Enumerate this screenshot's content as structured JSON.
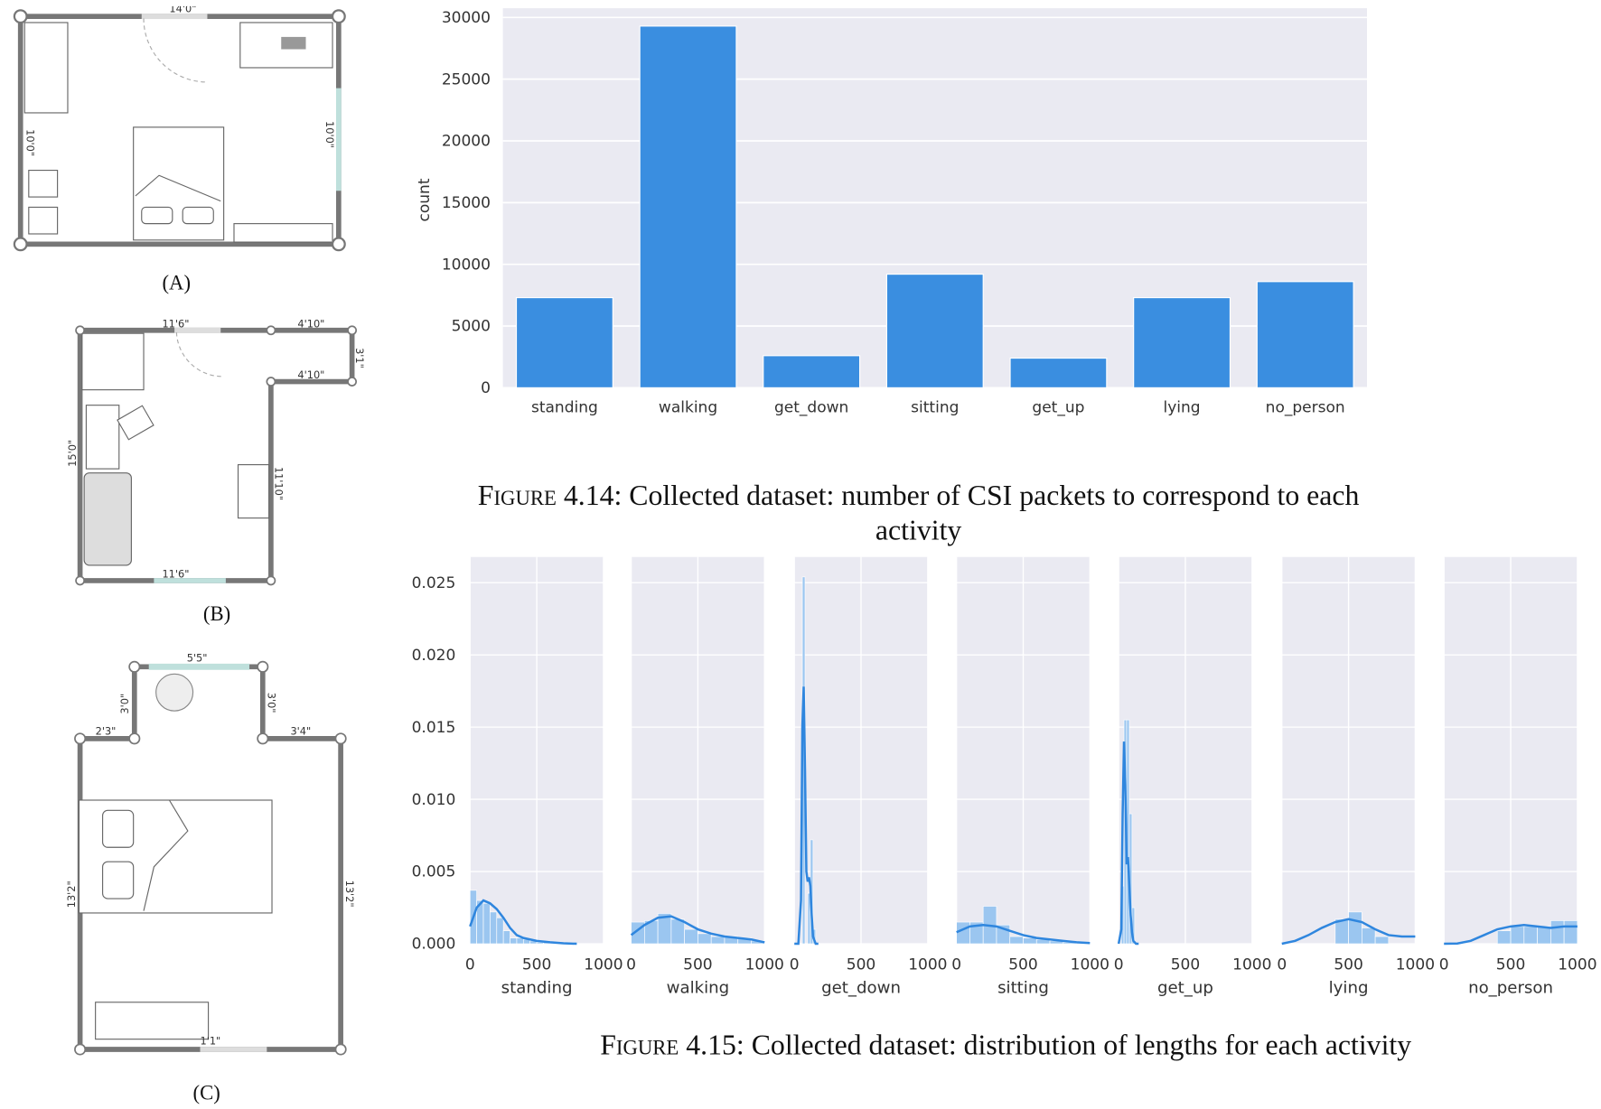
{
  "floorplans": {
    "a": {
      "label": "(A)",
      "dims": [
        "14'0\"",
        "10'0\"",
        "10'0\""
      ]
    },
    "b": {
      "label": "(B)",
      "dims": [
        "11'6\"",
        "4'10\"",
        "3'1\"",
        "4'10\"",
        "15'0\"",
        "11'10\"",
        "11'6\""
      ]
    },
    "c": {
      "label": "(C)",
      "dims": [
        "5'5\"",
        "3'0\"",
        "3'0\"",
        "2'3\"",
        "3'4\"",
        "13'2\"",
        "13'2\"",
        "1'1\""
      ]
    }
  },
  "figure_4_14": {
    "caption_prefix": "Figure 4.14:",
    "caption_text": "Collected dataset: number of CSI packets to correspond to each activity"
  },
  "figure_4_15": {
    "caption_prefix": "Figure 4.15:",
    "caption_text": "Collected dataset: distribution of lengths for each activity"
  },
  "colors": {
    "bar": "#3a8ee0",
    "plot_bg": "#eaeaf2",
    "grid": "#ffffff",
    "hist": "#93c3f0",
    "kde": "#2f86de"
  },
  "chart_data": [
    {
      "type": "bar",
      "categories": [
        "standing",
        "walking",
        "get_down",
        "sitting",
        "get_up",
        "lying",
        "no_person"
      ],
      "values": [
        7300,
        29300,
        2600,
        9200,
        2400,
        7300,
        8600
      ],
      "xlabel": "",
      "ylabel": "count",
      "ylim": [
        0,
        30500
      ],
      "yticks": [
        0,
        5000,
        10000,
        15000,
        20000,
        25000,
        30000
      ],
      "grid": true
    },
    {
      "type": "area",
      "facets": [
        "standing",
        "walking",
        "get_down",
        "sitting",
        "get_up",
        "lying",
        "no_person"
      ],
      "xlim": [
        0,
        1000
      ],
      "xticks": [
        0,
        500,
        1000
      ],
      "ylim": [
        0,
        0.026
      ],
      "yticks": [
        "0.000",
        "0.005",
        "0.010",
        "0.015",
        "0.020",
        "0.025"
      ],
      "grid": true,
      "series": [
        {
          "facet": "standing",
          "hist_x": [
            0,
            50,
            100,
            150,
            200,
            250,
            300,
            350,
            400,
            450,
            500,
            550,
            600,
            650
          ],
          "hist": [
            0.0037,
            0.003,
            0.0028,
            0.0022,
            0.0018,
            0.0009,
            0.0004,
            0.0004,
            0.0003,
            0.0002,
            0.0001,
            0.0001,
            5e-05,
            0.0
          ],
          "kde_x": [
            0,
            50,
            100,
            150,
            200,
            250,
            300,
            350,
            400,
            450,
            500,
            600,
            700,
            800
          ],
          "kde": [
            0.0012,
            0.0025,
            0.003,
            0.0028,
            0.0024,
            0.0018,
            0.0011,
            0.0006,
            0.0004,
            0.0003,
            0.0002,
            0.0001,
            3e-05,
            0
          ]
        },
        {
          "facet": "walking",
          "hist_x": [
            0,
            100,
            200,
            300,
            400,
            500,
            600,
            700,
            800,
            900
          ],
          "hist": [
            0.0015,
            0.0016,
            0.0021,
            0.0017,
            0.001,
            0.0007,
            0.0005,
            0.0005,
            0.0004,
            0.0002
          ],
          "kde_x": [
            0,
            100,
            200,
            300,
            400,
            500,
            600,
            700,
            800,
            900,
            1000
          ],
          "kde": [
            0.0006,
            0.0013,
            0.0018,
            0.0019,
            0.0015,
            0.001,
            0.0007,
            0.0005,
            0.0004,
            0.0003,
            0.0001
          ]
        },
        {
          "facet": "get_down",
          "hist_x": [
            40,
            60,
            80,
            100,
            120,
            140,
            160
          ],
          "hist": [
            0.0,
            0.0254,
            0.0,
            0.0035,
            0.0072,
            0.001,
            0.0
          ],
          "kde_x": [
            0,
            30,
            50,
            60,
            70,
            80,
            90,
            100,
            110,
            120,
            130,
            140,
            160,
            180
          ],
          "kde": [
            0,
            0.0,
            0.003,
            0.015,
            0.0178,
            0.012,
            0.005,
            0.0043,
            0.0046,
            0.004,
            0.002,
            0.0005,
            0.0,
            0
          ]
        },
        {
          "facet": "sitting",
          "hist_x": [
            0,
            100,
            200,
            300,
            400,
            500,
            600,
            700,
            800,
            900
          ],
          "hist": [
            0.0015,
            0.0015,
            0.0026,
            0.0013,
            0.0005,
            0.0004,
            0.0003,
            0.0002,
            0.0001,
            0.0001
          ],
          "kde_x": [
            0,
            100,
            200,
            300,
            400,
            500,
            600,
            700,
            800,
            900,
            1000
          ],
          "kde": [
            0.0008,
            0.0012,
            0.0013,
            0.0012,
            0.0009,
            0.0006,
            0.0004,
            0.0003,
            0.0002,
            0.0001,
            5e-05
          ]
        },
        {
          "facet": "get_up",
          "hist_x": [
            20,
            40,
            60,
            80,
            100,
            120
          ],
          "hist": [
            0.004,
            0.0155,
            0.0155,
            0.009,
            0.0025,
            0.0
          ],
          "kde_x": [
            0,
            20,
            30,
            40,
            50,
            60,
            70,
            80,
            90,
            100,
            110,
            130,
            150
          ],
          "kde": [
            0,
            0.001,
            0.009,
            0.014,
            0.011,
            0.0055,
            0.006,
            0.004,
            0.002,
            0.0008,
            0.0002,
            0,
            0
          ]
        },
        {
          "facet": "lying",
          "hist_x": [
            300,
            400,
            500,
            600,
            700,
            800
          ],
          "hist": [
            0.0,
            0.0017,
            0.0022,
            0.0011,
            0.0005,
            0.0
          ],
          "kde_x": [
            0,
            100,
            200,
            300,
            400,
            500,
            600,
            700,
            800,
            900,
            1000
          ],
          "kde": [
            0,
            0.0002,
            0.0006,
            0.0011,
            0.0015,
            0.0017,
            0.0015,
            0.001,
            0.0006,
            0.0005,
            0.0005
          ]
        },
        {
          "facet": "no_person",
          "hist_x": [
            300,
            400,
            500,
            600,
            700,
            800,
            900
          ],
          "hist": [
            0.0,
            0.0009,
            0.0012,
            0.0012,
            0.0012,
            0.0016,
            0.0016
          ],
          "kde_x": [
            0,
            100,
            200,
            300,
            400,
            500,
            600,
            700,
            800,
            900,
            1000
          ],
          "kde": [
            0,
            2e-05,
            0.0002,
            0.0006,
            0.001,
            0.0012,
            0.0013,
            0.0012,
            0.0011,
            0.0012,
            0.0012
          ]
        }
      ]
    }
  ]
}
